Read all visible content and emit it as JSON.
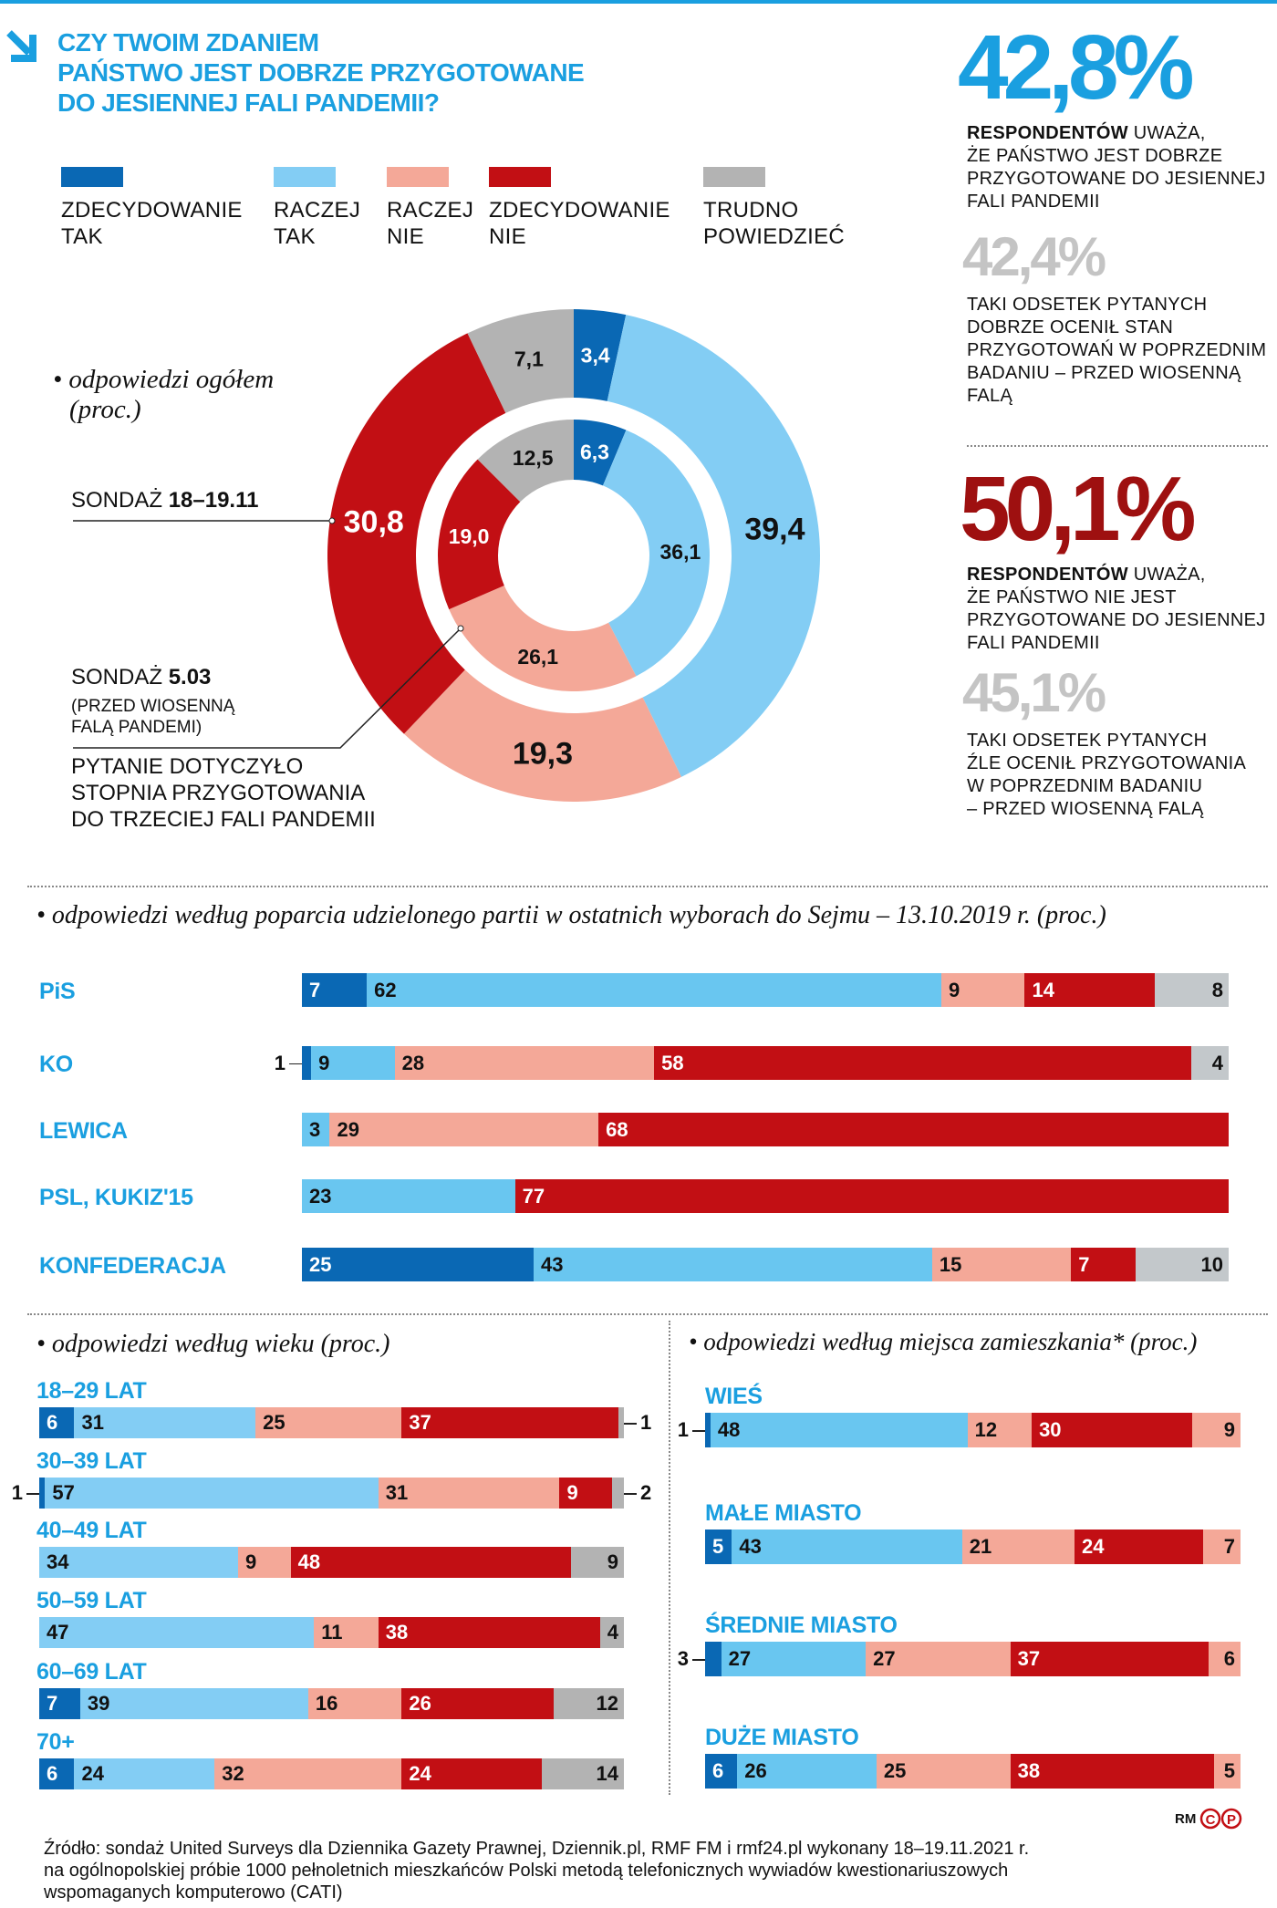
{
  "title": [
    "CZY TWOIM ZDANIEM",
    "PAŃSTWO JEST DOBRZE PRZYGOTOWANE",
    "DO JESIENNEJ FALI PANDEMII?"
  ],
  "icons": {
    "title_arrow": "arrow-down-right-icon"
  },
  "colors": {
    "zdecydowanie_tak": "#0a68b4",
    "raczej_tak": "#83cdf4",
    "raczej_nie": "#f4a898",
    "zdecydowanie_nie": "#c20f14",
    "trudno_powiedziec": "#b3b3b3",
    "accent_blue": "#1a9fe0",
    "dark_red": "#9e1010",
    "muted_gray": "#c4c4c4"
  },
  "legend": [
    {
      "lines": [
        "ZDECYDOWANIE",
        "TAK"
      ],
      "color": "#0a68b4"
    },
    {
      "lines": [
        "RACZEJ",
        "TAK"
      ],
      "color": "#83cdf4"
    },
    {
      "lines": [
        "RACZEJ",
        "NIE"
      ],
      "color": "#f4a898"
    },
    {
      "lines": [
        "ZDECYDOWANIE",
        "NIE"
      ],
      "color": "#c20f14"
    },
    {
      "lines": [
        "TRUDNO",
        "POWIEDZIEĆ"
      ],
      "color": "#b3b3b3"
    }
  ],
  "donut": {
    "heading": [
      "odpowiedzi ogółem",
      "(proc.)"
    ],
    "outer_label": {
      "prefix": "SONDAŻ ",
      "bold": "18–19.11"
    },
    "inner_label": {
      "prefix": "SONDAŻ ",
      "bold": "5.03",
      "note": [
        "(PRZED WIOSENNĄ",
        "FALĄ PANDEMI)"
      ]
    },
    "question_note": [
      "PYTANIE DOTYCZYŁO",
      "STOPNIA PRZYGOTOWANIA",
      "DO TRZECIEJ FALI PANDEMII"
    ]
  },
  "right": {
    "big1": "42,8%",
    "text1": {
      "bold": "RESPONDENTÓW",
      "rest": " UWAŻA,",
      "lines": [
        "ŻE PAŃSTWO JEST DOBRZE",
        "PRZYGOTOWANE DO JESIENNEJ",
        "FALI PANDEMII"
      ]
    },
    "big2": "42,4%",
    "text2": [
      "TAKI ODSETEK PYTANYCH",
      "DOBRZE OCENIŁ STAN",
      "PRZYGOTOWAŃ W POPRZEDNIM",
      "BADANIU – PRZED WIOSENNĄ",
      "FALĄ"
    ],
    "big3": "50,1%",
    "text3": {
      "bold": "RESPONDENTÓW",
      "rest": " UWAŻA,",
      "lines": [
        "ŻE PAŃSTWO NIE JEST",
        "PRZYGOTOWANE DO  JESIENNEJ",
        "FALI PANDEMII"
      ]
    },
    "big4": "45,1%",
    "text4": [
      "TAKI ODSETEK PYTANYCH",
      "ŹLE OCENIŁ PRZYGOTOWANIA",
      "W POPRZEDNIM BADANIU",
      "– PRZED WIOSENNĄ FALĄ"
    ]
  },
  "sections": {
    "party": "odpowiedzi według poparcia udzielonego partii w ostatnich wyborach do Sejmu – 13.10.2019 r. (proc.)",
    "age": "odpowiedzi według wieku (proc.)",
    "residence": "odpowiedzi według miejsca zamieszkania* (proc.)"
  },
  "chart_data": [
    {
      "type": "pie",
      "variant": "double-donut",
      "categories": [
        "ZDECYDOWANIE TAK",
        "RACZEJ TAK",
        "RACZEJ NIE",
        "ZDECYDOWANIE NIE",
        "TRUDNO POWIEDZIEĆ"
      ],
      "series": [
        {
          "name": "SONDAŻ 18–19.11",
          "ring": "outer",
          "values": [
            3.4,
            39.4,
            19.3,
            30.8,
            7.1
          ],
          "labels": [
            "3,4",
            "39,4",
            "19,3",
            "30,8",
            "7,1"
          ]
        },
        {
          "name": "SONDAŻ 5.03",
          "ring": "inner",
          "values": [
            6.3,
            36.1,
            26.1,
            19.0,
            12.5
          ],
          "labels": [
            "6,3",
            "36,1",
            "26,1",
            "19,0",
            "12,5"
          ]
        }
      ]
    },
    {
      "type": "bar",
      "stacked": true,
      "orientation": "horizontal",
      "title": "odpowiedzi według poparcia udzielonego partii w ostatnich wyborach do Sejmu – 13.10.2019 r. (proc.)",
      "segment_colors": [
        "#0a68b4",
        "#69c6f0",
        "#f4a898",
        "#c20f14",
        "#c3c8cb"
      ],
      "categories": [
        "PiS",
        "KO",
        "LEWICA",
        "PSL, KUKIZ'15",
        "KONFEDERACJA"
      ],
      "values": [
        [
          7,
          62,
          9,
          14,
          8
        ],
        [
          1,
          9,
          28,
          58,
          4
        ],
        [
          0,
          3,
          29,
          68,
          0
        ],
        [
          0,
          23,
          0,
          77,
          0
        ],
        [
          25,
          43,
          15,
          7,
          10
        ]
      ]
    },
    {
      "type": "bar",
      "stacked": true,
      "orientation": "horizontal",
      "title": "odpowiedzi według wieku (proc.)",
      "segment_colors": [
        "#0a68b4",
        "#83cdf4",
        "#f4a898",
        "#c20f14",
        "#b3b3b3"
      ],
      "categories": [
        "18–29 LAT",
        "30–39 LAT",
        "40–49 LAT",
        "50–59 LAT",
        "60–69 LAT",
        "70+"
      ],
      "values": [
        [
          6,
          31,
          25,
          37,
          1
        ],
        [
          1,
          57,
          31,
          9,
          2
        ],
        [
          0,
          34,
          9,
          48,
          9
        ],
        [
          0,
          47,
          11,
          38,
          4
        ],
        [
          7,
          39,
          16,
          26,
          12
        ],
        [
          6,
          24,
          32,
          24,
          14
        ]
      ]
    },
    {
      "type": "bar",
      "stacked": true,
      "orientation": "horizontal",
      "title": "odpowiedzi według miejsca zamieszkania* (proc.)",
      "segment_colors": [
        "#0a68b4",
        "#69c6f0",
        "#f4a898",
        "#c20f14",
        "#f4a898"
      ],
      "categories": [
        "WIEŚ",
        "MAŁE MIASTO",
        "ŚREDNIE MIASTO",
        "DUŻE MIASTO"
      ],
      "values": [
        [
          1,
          48,
          12,
          30,
          9
        ],
        [
          5,
          43,
          21,
          24,
          7
        ],
        [
          3,
          27,
          27,
          37,
          6
        ],
        [
          6,
          26,
          25,
          38,
          5
        ]
      ]
    }
  ],
  "signature": {
    "initials": "RM",
    "logo": "CP"
  },
  "footer": [
    "Źródło: sondaż United Surveys dla Dziennika Gazety Prawnej, Dziennik.pl, RMF FM i rmf24.pl wykonany 18–19.11.2021 r.",
    "na ogólnopolskiej próbie 1000 pełnoletnich mieszkańców Polski metodą telefonicznych wywiadów kwestionariuszowych",
    "wspomaganych komputerowo (CATI)"
  ]
}
